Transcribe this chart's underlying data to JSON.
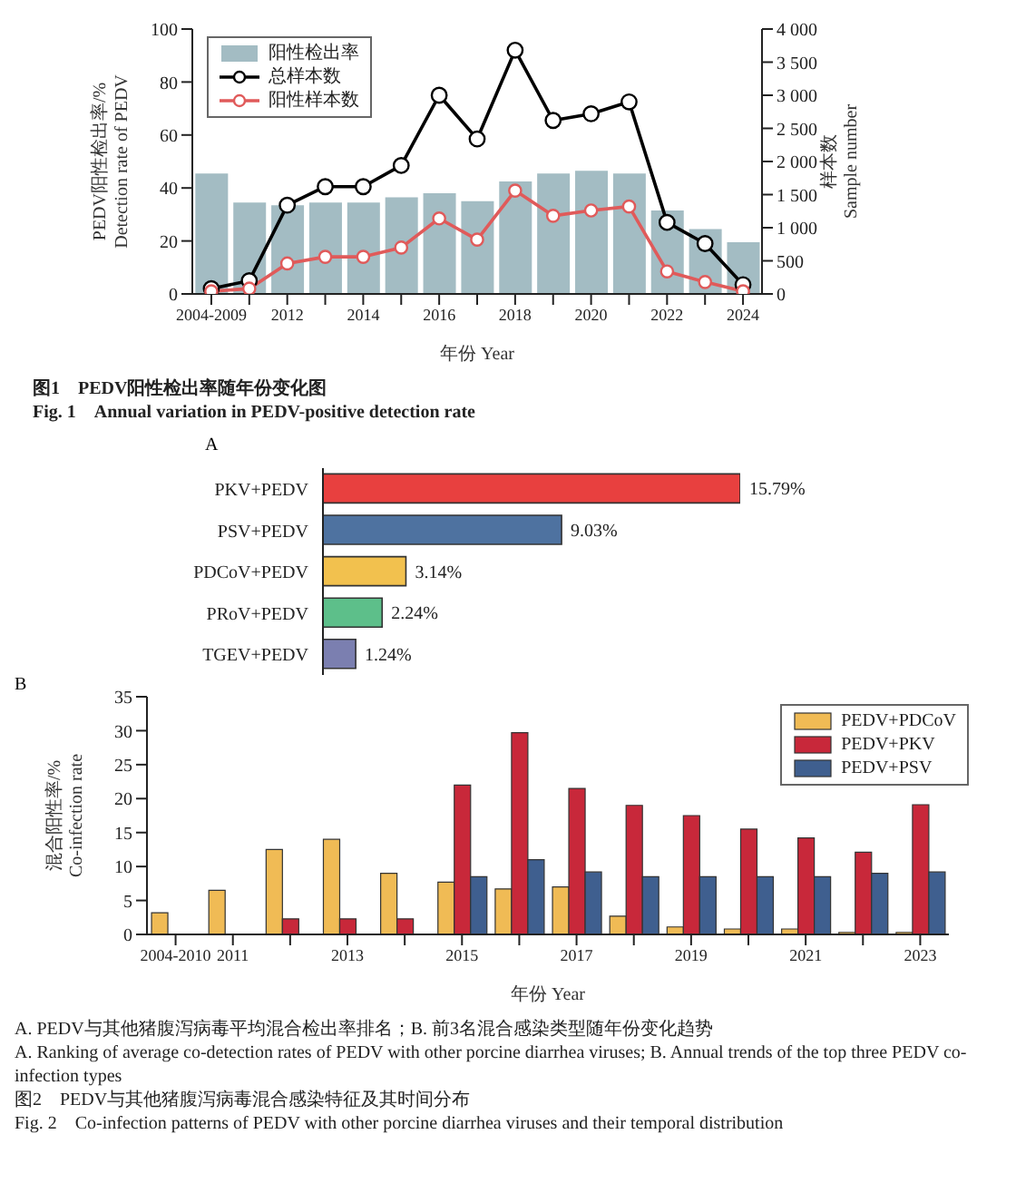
{
  "chart_data": [
    {
      "type": "bar",
      "categories": [
        "2004-2009",
        null,
        "2012",
        null,
        "2014",
        null,
        "2016",
        null,
        "2018",
        null,
        "2020",
        null,
        "2022",
        null,
        "2024"
      ],
      "series": [
        {
          "name": "阳性检出率",
          "type": "bar",
          "color": "#a3bcc3",
          "values": [
            45.5,
            34.5,
            33.5,
            34.5,
            34.5,
            36.5,
            38,
            35,
            42.5,
            45.5,
            46.5,
            45.5,
            31.5,
            24.5,
            19.5
          ]
        },
        {
          "name": "总样本数",
          "type": "line",
          "axis": "y2",
          "color": "#000000",
          "values": [
            80,
            200,
            1340,
            1620,
            1620,
            1940,
            3000,
            2340,
            3680,
            2620,
            2720,
            2900,
            1080,
            760,
            140
          ]
        },
        {
          "name": "阳性样本数",
          "type": "line",
          "axis": "y2",
          "color": "#e05a5a",
          "values": [
            40,
            80,
            460,
            560,
            560,
            700,
            1140,
            820,
            1560,
            1180,
            1260,
            1320,
            340,
            180,
            40
          ]
        }
      ],
      "ylim": [
        0,
        100
      ],
      "yticks": [
        0,
        20,
        40,
        60,
        80,
        100
      ],
      "y2lim": [
        0,
        4000
      ],
      "y2ticks": [
        0,
        500,
        {
          "value": 1000,
          "label": "1 000"
        },
        {
          "value": 1500,
          "label": "1 500"
        },
        {
          "value": 2000,
          "label": "2 000"
        },
        {
          "value": 2500,
          "label": "2 500"
        },
        {
          "value": 3000,
          "label": "3 000"
        },
        {
          "value": 3500,
          "label": "3 500"
        },
        {
          "value": 4000,
          "label": "4 000"
        }
      ],
      "ylabel": "PEDV阳性检出率/%\nDetection rate of PEDV",
      "y2label": "样本数\nSample number",
      "xlabel": "年份 Year",
      "legend": "top left",
      "marker": "circle",
      "line_style": "solid",
      "grid": false,
      "annotations": [
        "图1　PEDV阳性检出率随年份变化图",
        "Fig. 1　Annual variation in PEDV-positive detection rate"
      ]
    },
    {
      "type": "bar",
      "orientation": "horizontal",
      "title": "A",
      "tick_labels": "y",
      "categories": [
        "PKV+PEDV",
        "PSV+PEDV",
        "PDCoV+PEDV",
        "PRoV+PEDV",
        "TGEV+PEDV"
      ],
      "values": [
        15.79,
        9.03,
        3.14,
        2.24,
        1.24
      ],
      "colors": [
        "#e8403f",
        "#4e72a0",
        "#f2c14e",
        "#5dbf8a",
        "#7b7fb0"
      ],
      "value_labels": [
        "15.79%",
        "9.03%",
        "3.14%",
        "2.24%",
        "1.24%"
      ],
      "grid": false
    },
    {
      "type": "bar",
      "title": "B",
      "categories": [
        "2004-2010",
        "2011",
        null,
        "2013",
        null,
        "2015",
        null,
        "2017",
        null,
        "2019",
        null,
        "2021",
        null,
        "2023"
      ],
      "series": [
        {
          "name": "PEDV+PDCoV",
          "color": "#f0bb55",
          "values": [
            3.2,
            6.5,
            12.5,
            14,
            9,
            7.7,
            6.7,
            7,
            2.7,
            1.1,
            0.8,
            0.8,
            0.3,
            0.3
          ]
        },
        {
          "name": "PEDV+PKV",
          "color": "#c8283a",
          "values": [
            0,
            0,
            2.3,
            2.3,
            2.3,
            22,
            29.7,
            21.5,
            19,
            17.5,
            15.5,
            14.2,
            12.1,
            19.1
          ]
        },
        {
          "name": "PEDV+PSV",
          "color": "#3f5f8f",
          "values": [
            0,
            0,
            0,
            0,
            0,
            8.5,
            11,
            9.2,
            8.5,
            8.5,
            8.5,
            8.5,
            9,
            9.2
          ]
        }
      ],
      "ylim": [
        0,
        35
      ],
      "yticks": [
        0,
        5,
        10,
        15,
        20,
        25,
        30,
        35
      ],
      "ylabel": "混合阳性率/%\nCo-infection rate",
      "xlabel": "年份 Year",
      "legend": "top right",
      "grid": false,
      "annotations": [
        "A. PEDV与其他猪腹泻病毒平均混合检出率排名；B. 前3名混合感染类型随年份变化趋势",
        "A. Ranking of average co-detection rates of PEDV with other porcine diarrhea viruses; B. Annual trends of the top three PEDV co-infection types",
        "图2　PEDV与其他猪腹泻病毒混合感染特征及其时间分布",
        "Fig. 2　Co-infection patterns of PEDV with other porcine diarrhea viruses and their temporal distribution"
      ]
    }
  ]
}
